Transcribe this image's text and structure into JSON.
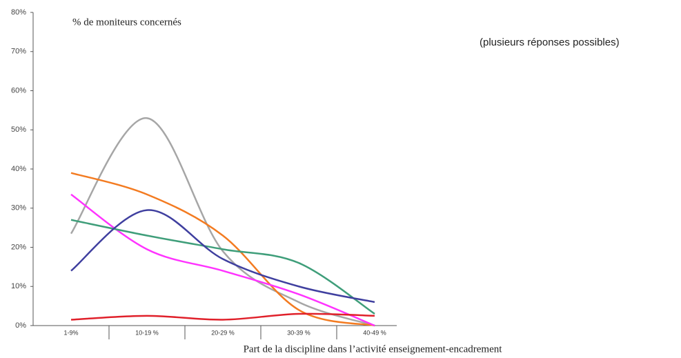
{
  "chart_data": {
    "type": "line",
    "title": "% de moniteurs concernés",
    "subtitle": "(plusieurs réponses possibles)",
    "x_label": "Part de la discipline dans l’activité enseignement-encadrement",
    "categories": [
      "1-9%",
      "10-19 %",
      "20-29 %",
      "30-39 %",
      "40-49 %"
    ],
    "series": [
      {
        "color": "#a6a6a6",
        "values": [
          23.5,
          53,
          19,
          6,
          0
        ]
      },
      {
        "color": "#f37b21",
        "values": [
          39,
          33.5,
          23,
          4,
          0
        ]
      },
      {
        "color": "#ff33ff",
        "values": [
          33.5,
          19.5,
          14,
          8,
          0
        ]
      },
      {
        "color": "#3f9e7a",
        "values": [
          27,
          23,
          19.5,
          16,
          3
        ]
      },
      {
        "color": "#3f3f9f",
        "values": [
          14,
          29.5,
          17,
          10,
          6
        ]
      },
      {
        "color": "#e0202a",
        "values": [
          1.5,
          2.5,
          1.5,
          3,
          2.5
        ]
      }
    ],
    "ylim": [
      0,
      80
    ],
    "yticks": [
      {
        "value": 0,
        "label": "0%"
      },
      {
        "value": 10,
        "label": "10%"
      },
      {
        "value": 20,
        "label": "20%"
      },
      {
        "value": 30,
        "label": "30%"
      },
      {
        "value": 40,
        "label": "40%"
      },
      {
        "value": 50,
        "label": "50%"
      },
      {
        "value": 60,
        "label": "60%"
      },
      {
        "value": 70,
        "label": "70%"
      },
      {
        "value": 80,
        "label": "80%"
      }
    ],
    "grid": false
  }
}
